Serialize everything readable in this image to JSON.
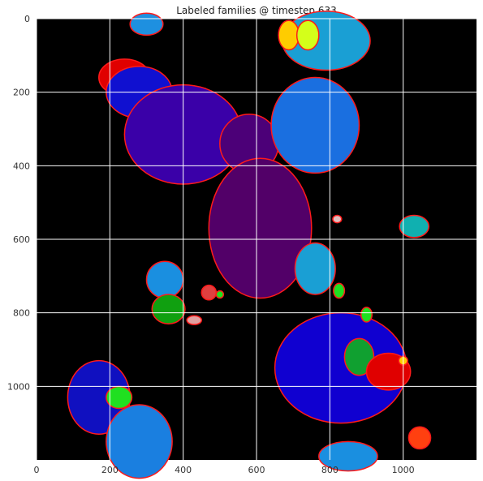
{
  "chart_data": {
    "type": "heatmap",
    "title": "Labeled families @ timestep 633",
    "xlabel": "",
    "ylabel": "",
    "xlim": [
      0,
      1200
    ],
    "ylim": [
      1200,
      0
    ],
    "x_ticks": [
      "0",
      "200",
      "400",
      "600",
      "800",
      "1000"
    ],
    "y_ticks": [
      "0",
      "200",
      "400",
      "600",
      "800",
      "1000"
    ],
    "grid": true,
    "grid_color": "#ffffff",
    "background_color": "#000000",
    "boundary_color": "#ff1a1a",
    "regions": [
      {
        "cx": 300,
        "cy": 15,
        "rx": 45,
        "ry": 30,
        "color": "#1e90e0"
      },
      {
        "cx": 790,
        "cy": 60,
        "rx": 120,
        "ry": 80,
        "color": "#1a9fd4"
      },
      {
        "cx": 688,
        "cy": 45,
        "rx": 28,
        "ry": 40,
        "color": "#ffcc00"
      },
      {
        "cx": 740,
        "cy": 45,
        "rx": 30,
        "ry": 40,
        "color": "#d4ff1a"
      },
      {
        "cx": 240,
        "cy": 160,
        "rx": 70,
        "ry": 50,
        "color": "#e00000"
      },
      {
        "cx": 280,
        "cy": 200,
        "rx": 90,
        "ry": 70,
        "color": "#1010d0"
      },
      {
        "cx": 400,
        "cy": 315,
        "rx": 160,
        "ry": 135,
        "color": "#3a00a8"
      },
      {
        "cx": 580,
        "cy": 340,
        "rx": 80,
        "ry": 80,
        "color": "#4c0078"
      },
      {
        "cx": 760,
        "cy": 290,
        "rx": 120,
        "ry": 130,
        "color": "#1a6fe0"
      },
      {
        "cx": 610,
        "cy": 570,
        "rx": 140,
        "ry": 190,
        "color": "#520068"
      },
      {
        "cx": 760,
        "cy": 680,
        "rx": 55,
        "ry": 70,
        "color": "#1a9fd4"
      },
      {
        "cx": 1030,
        "cy": 565,
        "rx": 40,
        "ry": 30,
        "color": "#10b0b0"
      },
      {
        "cx": 350,
        "cy": 710,
        "rx": 50,
        "ry": 50,
        "color": "#1a8fe0"
      },
      {
        "cx": 360,
        "cy": 790,
        "rx": 45,
        "ry": 40,
        "color": "#10a010"
      },
      {
        "cx": 470,
        "cy": 745,
        "rx": 20,
        "ry": 20,
        "color": "#e04040"
      },
      {
        "cx": 500,
        "cy": 750,
        "rx": 10,
        "ry": 10,
        "color": "#20e020"
      },
      {
        "cx": 430,
        "cy": 820,
        "rx": 20,
        "ry": 12,
        "color": "#e0a0a0"
      },
      {
        "cx": 830,
        "cy": 950,
        "rx": 180,
        "ry": 150,
        "color": "#1000d0"
      },
      {
        "cx": 880,
        "cy": 920,
        "rx": 40,
        "ry": 50,
        "color": "#10a030"
      },
      {
        "cx": 960,
        "cy": 960,
        "rx": 60,
        "ry": 50,
        "color": "#e00000"
      },
      {
        "cx": 825,
        "cy": 740,
        "rx": 15,
        "ry": 20,
        "color": "#20e020"
      },
      {
        "cx": 900,
        "cy": 805,
        "rx": 15,
        "ry": 20,
        "color": "#20e020"
      },
      {
        "cx": 170,
        "cy": 1030,
        "rx": 85,
        "ry": 100,
        "color": "#1010c0"
      },
      {
        "cx": 225,
        "cy": 1030,
        "rx": 35,
        "ry": 30,
        "color": "#20e020"
      },
      {
        "cx": 280,
        "cy": 1150,
        "rx": 90,
        "ry": 100,
        "color": "#1a7fe0"
      },
      {
        "cx": 850,
        "cy": 1190,
        "rx": 80,
        "ry": 40,
        "color": "#1a8fe0"
      },
      {
        "cx": 1045,
        "cy": 1140,
        "rx": 30,
        "ry": 30,
        "color": "#ff4010"
      },
      {
        "cx": 820,
        "cy": 545,
        "rx": 12,
        "ry": 10,
        "color": "#e0c0c0"
      },
      {
        "cx": 1000,
        "cy": 930,
        "rx": 12,
        "ry": 12,
        "color": "#ffcc00"
      }
    ]
  }
}
